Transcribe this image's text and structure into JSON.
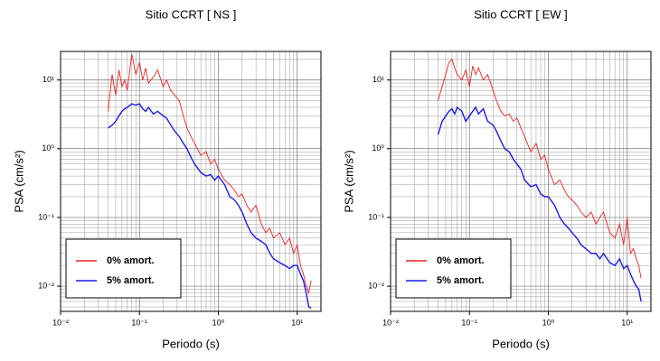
{
  "chart_data": [
    {
      "type": "line",
      "title": "Sitio CCRT [ NS ]",
      "x_label": "Periodo (s)",
      "y_label": "PSA (cm/s²)",
      "log_x": true,
      "log_y": true,
      "grid": true,
      "legend": "lower left",
      "xlim": [
        0.01,
        20
      ],
      "ylim": [
        0.0043,
        26
      ],
      "xticks": [
        {
          "value": 0.01,
          "label": "10⁻²"
        },
        {
          "value": 0.1,
          "label": "10⁻¹"
        },
        {
          "value": 1,
          "label": "10⁰"
        },
        {
          "value": 10,
          "label": "10¹"
        }
      ],
      "yticks": [
        {
          "value": 0.01,
          "label": "10⁻²"
        },
        {
          "value": 0.1,
          "label": "10⁻¹"
        },
        {
          "value": 1,
          "label": "10⁰"
        },
        {
          "value": 10,
          "label": "10¹"
        }
      ],
      "x": [
        0.04,
        0.045,
        0.05,
        0.055,
        0.06,
        0.065,
        0.07,
        0.08,
        0.09,
        0.1,
        0.11,
        0.12,
        0.13,
        0.15,
        0.17,
        0.2,
        0.22,
        0.25,
        0.28,
        0.32,
        0.36,
        0.4,
        0.45,
        0.5,
        0.6,
        0.7,
        0.8,
        0.9,
        1,
        1.2,
        1.4,
        1.6,
        1.8,
        2,
        2.3,
        2.6,
        3,
        3.5,
        4,
        4.5,
        5,
        6,
        7,
        8,
        9,
        10,
        11,
        12,
        13,
        14,
        15
      ],
      "series": [
        {
          "name": "0% amort.",
          "color": "#ee2222",
          "values": [
            3.5,
            12,
            6,
            14,
            8,
            10,
            7,
            24,
            12,
            18,
            10,
            15,
            9,
            11,
            14,
            8,
            10,
            7,
            6,
            5,
            3,
            2,
            1.5,
            1.2,
            0.8,
            0.9,
            0.6,
            0.7,
            0.5,
            0.35,
            0.3,
            0.25,
            0.2,
            0.22,
            0.15,
            0.12,
            0.15,
            0.08,
            0.06,
            0.07,
            0.05,
            0.06,
            0.04,
            0.05,
            0.03,
            0.04,
            0.02,
            0.015,
            0.01,
            0.008,
            0.012
          ]
        },
        {
          "name": "5% amort.",
          "color": "#1a1aee",
          "values": [
            2,
            2.2,
            2.5,
            3,
            3.5,
            3.8,
            4,
            4.5,
            4.3,
            4.5,
            3.8,
            3.5,
            4,
            3.2,
            3.5,
            3,
            2.8,
            2.2,
            1.8,
            1.5,
            1.2,
            1,
            0.75,
            0.6,
            0.45,
            0.4,
            0.42,
            0.35,
            0.4,
            0.3,
            0.2,
            0.18,
            0.15,
            0.12,
            0.08,
            0.06,
            0.05,
            0.045,
            0.04,
            0.03,
            0.025,
            0.022,
            0.02,
            0.018,
            0.02,
            0.02,
            0.015,
            0.012,
            0.008,
            0.005,
            0.0048
          ]
        }
      ]
    },
    {
      "type": "line",
      "title": "Sitio CCRT [ EW ]",
      "x_label": "Periodo (s)",
      "y_label": "PSA (cm/s²)",
      "log_x": true,
      "log_y": true,
      "grid": true,
      "legend": "lower left",
      "xlim": [
        0.01,
        20
      ],
      "ylim": [
        0.0043,
        26
      ],
      "xticks": [
        {
          "value": 0.01,
          "label": "10⁻²"
        },
        {
          "value": 0.1,
          "label": "10⁻¹"
        },
        {
          "value": 1,
          "label": "10⁰"
        },
        {
          "value": 10,
          "label": "10¹"
        }
      ],
      "yticks": [
        {
          "value": 0.01,
          "label": "10⁻²"
        },
        {
          "value": 0.1,
          "label": "10⁻¹"
        },
        {
          "value": 1,
          "label": "10⁰"
        },
        {
          "value": 10,
          "label": "10¹"
        }
      ],
      "x": [
        0.04,
        0.045,
        0.05,
        0.055,
        0.06,
        0.065,
        0.07,
        0.08,
        0.09,
        0.1,
        0.11,
        0.12,
        0.13,
        0.15,
        0.17,
        0.2,
        0.22,
        0.25,
        0.28,
        0.32,
        0.36,
        0.4,
        0.45,
        0.5,
        0.6,
        0.7,
        0.8,
        0.9,
        1,
        1.2,
        1.4,
        1.6,
        1.8,
        2,
        2.3,
        2.6,
        3,
        3.5,
        4,
        4.5,
        5,
        6,
        7,
        8,
        9,
        10,
        11,
        12,
        13,
        14,
        15
      ],
      "series": [
        {
          "name": "0% amort.",
          "color": "#ee2222",
          "values": [
            5,
            8,
            12,
            18,
            20,
            15,
            12,
            10,
            14,
            8,
            16,
            12,
            15,
            10,
            12,
            7,
            5,
            3.5,
            3,
            3.2,
            2.5,
            2.8,
            2,
            1.5,
            0.9,
            1.2,
            0.7,
            0.8,
            0.5,
            0.3,
            0.35,
            0.25,
            0.2,
            0.18,
            0.15,
            0.12,
            0.1,
            0.12,
            0.08,
            0.1,
            0.12,
            0.06,
            0.05,
            0.08,
            0.04,
            0.1,
            0.03,
            0.035,
            0.025,
            0.02,
            0.013
          ]
        },
        {
          "name": "5% amort.",
          "color": "#1a1aee",
          "values": [
            1.6,
            2.5,
            3,
            3.5,
            3.8,
            3.2,
            4,
            3.5,
            2.5,
            3,
            3.5,
            4,
            3.2,
            3.8,
            2.5,
            2.2,
            1.8,
            1.3,
            1,
            0.9,
            0.7,
            0.6,
            0.5,
            0.35,
            0.28,
            0.3,
            0.22,
            0.2,
            0.2,
            0.15,
            0.1,
            0.08,
            0.07,
            0.06,
            0.05,
            0.04,
            0.035,
            0.03,
            0.03,
            0.025,
            0.03,
            0.022,
            0.02,
            0.025,
            0.018,
            0.02,
            0.015,
            0.012,
            0.01,
            0.009,
            0.006
          ]
        }
      ]
    }
  ]
}
